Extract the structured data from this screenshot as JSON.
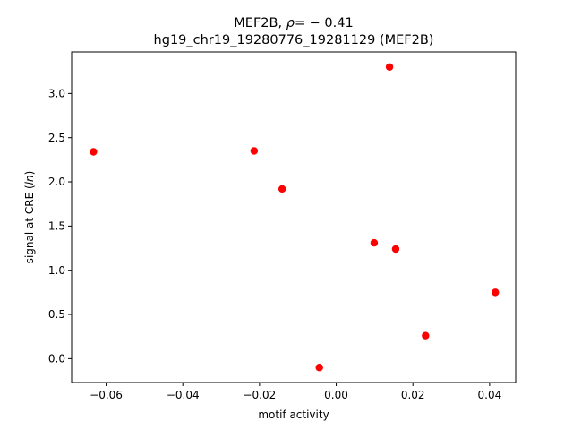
{
  "chart_data": {
    "type": "scatter",
    "title_line1_prefix": "MEF2B, ",
    "title_line1_rho": "ρ",
    "title_line1_suffix": "= − 0.41",
    "title_line2": "hg19_chr19_19280776_19281129 (MEF2B)",
    "xlabel": "motif activity",
    "ylabel_prefix": "signal at CRE (",
    "ylabel_italic": "ln",
    "ylabel_suffix": ")",
    "xlim": [
      -0.069,
      0.0468
    ],
    "ylim": [
      -0.27,
      3.47
    ],
    "xticks": [
      -0.06,
      -0.04,
      -0.02,
      0.0,
      0.02,
      0.04
    ],
    "xtick_labels": [
      "−0.06",
      "−0.04",
      "−0.02",
      "0.00",
      "0.02",
      "0.04"
    ],
    "yticks": [
      0.0,
      0.5,
      1.0,
      1.5,
      2.0,
      2.5,
      3.0
    ],
    "ytick_labels": [
      "0.0",
      "0.5",
      "1.0",
      "1.5",
      "2.0",
      "2.5",
      "3.0"
    ],
    "grid": false,
    "marker_color": "#ff0000",
    "points": [
      {
        "x": -0.0633,
        "y": 2.34
      },
      {
        "x": -0.0214,
        "y": 2.35
      },
      {
        "x": -0.0141,
        "y": 1.92
      },
      {
        "x": -0.0044,
        "y": -0.1
      },
      {
        "x": 0.0099,
        "y": 1.31
      },
      {
        "x": 0.0139,
        "y": 3.3
      },
      {
        "x": 0.0155,
        "y": 1.24
      },
      {
        "x": 0.0233,
        "y": 0.26
      },
      {
        "x": 0.0415,
        "y": 0.75
      }
    ]
  }
}
